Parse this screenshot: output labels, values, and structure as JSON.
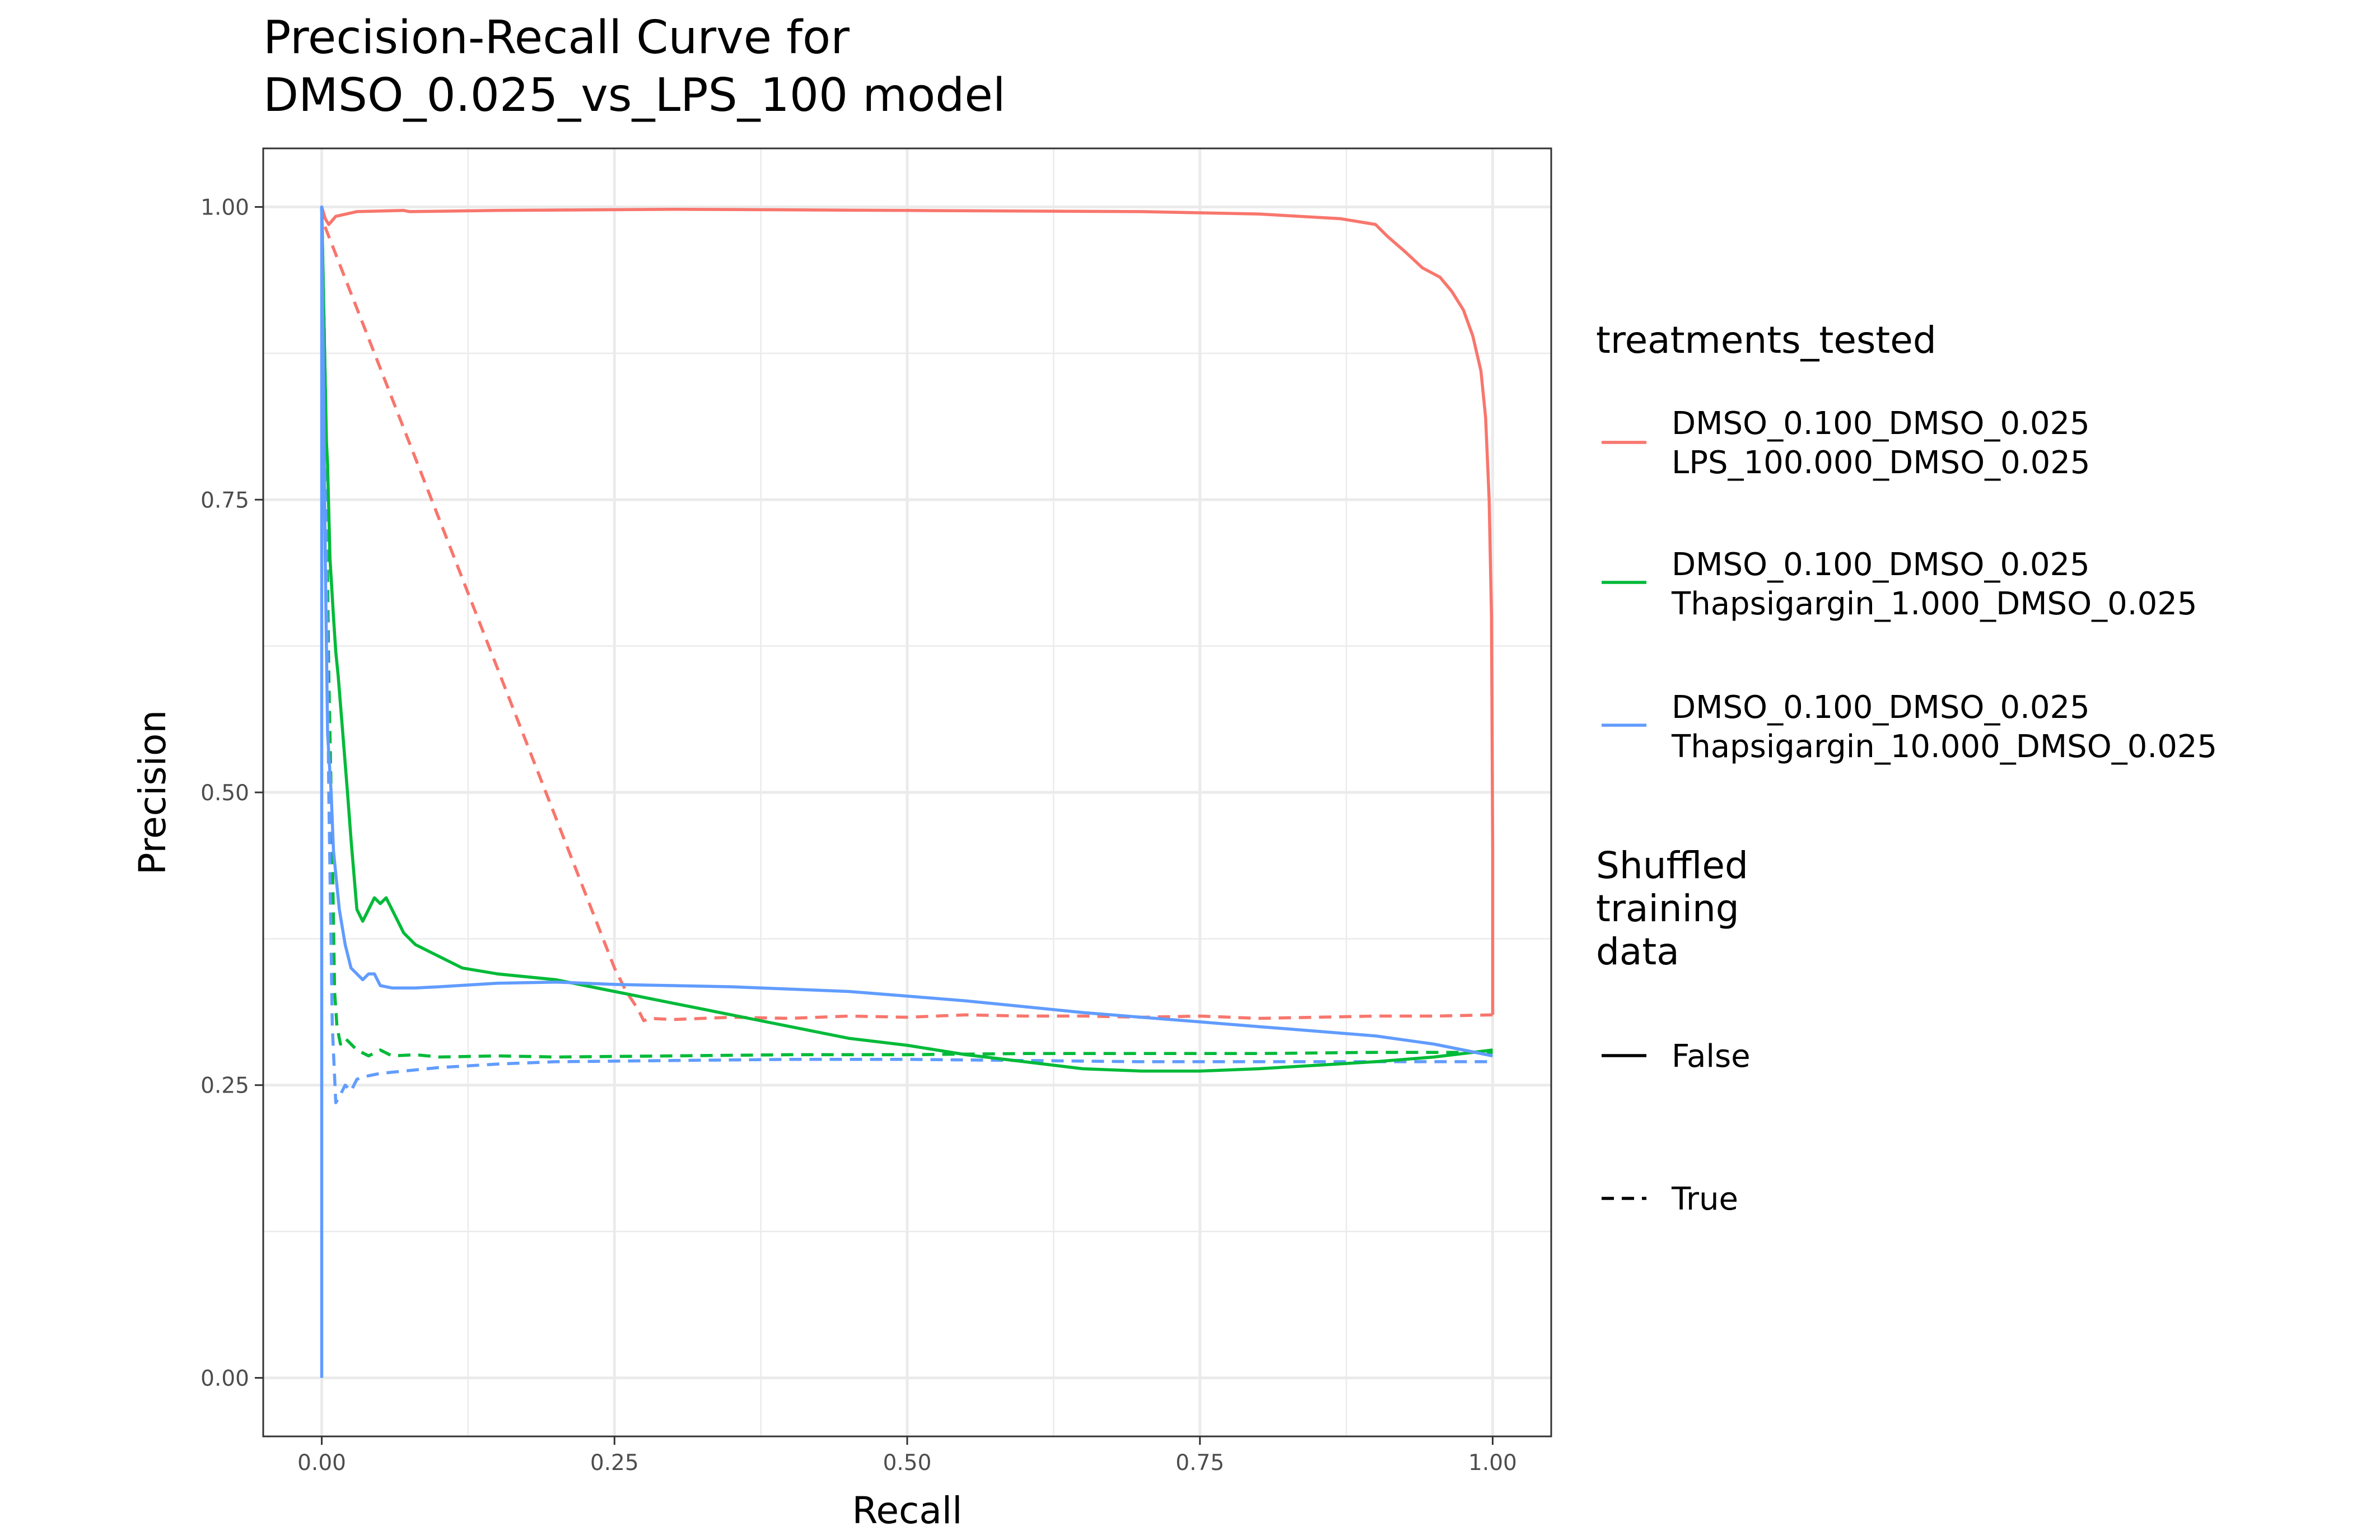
{
  "chart_data": {
    "type": "line",
    "title_lines": [
      "Precision-Recall Curve for",
      "DMSO_0.025_vs_LPS_100 model"
    ],
    "xlabel": "Recall",
    "ylabel": "Precision",
    "xlim": [
      -0.05,
      1.05
    ],
    "ylim": [
      -0.05,
      1.05
    ],
    "x_ticks": [
      0.0,
      0.25,
      0.5,
      0.75,
      1.0
    ],
    "x_tick_labels": [
      "0.00",
      "0.25",
      "0.50",
      "0.75",
      "1.00"
    ],
    "y_ticks": [
      0.0,
      0.25,
      0.5,
      0.75,
      1.0
    ],
    "y_tick_labels": [
      "0.00",
      "0.25",
      "0.50",
      "0.75",
      "1.00"
    ],
    "minor_grid": [
      0.125,
      0.375,
      0.625,
      0.875
    ],
    "grid": true,
    "legend_position": "right",
    "legend": {
      "color_title": "treatments_tested",
      "color_entries": [
        {
          "lines": [
            "DMSO_0.100_DMSO_0.025",
            "LPS_100.000_DMSO_0.025"
          ],
          "color": "#F8766D"
        },
        {
          "lines": [
            "DMSO_0.100_DMSO_0.025",
            "Thapsigargin_1.000_DMSO_0.025"
          ],
          "color": "#00BA38"
        },
        {
          "lines": [
            "DMSO_0.100_DMSO_0.025",
            "Thapsigargin_10.000_DMSO_0.025"
          ],
          "color": "#619CFF"
        }
      ],
      "linetype_title_lines": [
        "Shuffled",
        "training",
        "data"
      ],
      "linetype_entries": [
        {
          "label": "False",
          "dash": "solid"
        },
        {
          "label": "True",
          "dash": "dashed"
        }
      ]
    },
    "series": [
      {
        "treatment": "DMSO_0.100_DMSO_0.025 / LPS_100.000_DMSO_0.025",
        "shuffled": "False",
        "color": "#F8766D",
        "dash": "solid",
        "x": [
          0.0,
          0.003,
          0.006,
          0.012,
          0.03,
          0.07,
          0.075,
          0.15,
          0.3,
          0.5,
          0.7,
          0.8,
          0.87,
          0.9,
          0.91,
          0.925,
          0.94,
          0.955,
          0.965,
          0.975,
          0.983,
          0.99,
          0.994,
          0.997,
          0.998,
          0.999,
          1.0,
          1.0
        ],
        "y": [
          1.0,
          0.99,
          0.985,
          0.992,
          0.996,
          0.997,
          0.996,
          0.997,
          0.998,
          0.997,
          0.996,
          0.994,
          0.99,
          0.985,
          0.975,
          0.962,
          0.948,
          0.94,
          0.928,
          0.912,
          0.89,
          0.86,
          0.82,
          0.75,
          0.7,
          0.65,
          0.45,
          0.31
        ]
      },
      {
        "treatment": "DMSO_0.100_DMSO_0.025 / LPS_100.000_DMSO_0.025",
        "shuffled": "True",
        "color": "#F8766D",
        "dash": "dashed",
        "x": [
          0.0,
          0.002,
          0.004,
          0.25,
          0.26,
          0.27,
          0.275,
          0.28,
          0.3,
          0.35,
          0.4,
          0.45,
          0.5,
          0.55,
          0.6,
          0.65,
          0.7,
          0.75,
          0.8,
          0.85,
          0.9,
          0.95,
          1.0
        ],
        "y": [
          1.0,
          0.985,
          0.98,
          0.35,
          0.33,
          0.315,
          0.305,
          0.307,
          0.306,
          0.308,
          0.307,
          0.309,
          0.308,
          0.31,
          0.309,
          0.309,
          0.308,
          0.309,
          0.307,
          0.308,
          0.309,
          0.309,
          0.31
        ]
      },
      {
        "treatment": "DMSO_0.100_DMSO_0.025 / Thapsigargin_1.000_DMSO_0.025",
        "shuffled": "False",
        "color": "#00BA38",
        "dash": "solid",
        "x": [
          0.0,
          0.002,
          0.004,
          0.005,
          0.007,
          0.01,
          0.012,
          0.014,
          0.018,
          0.022,
          0.025,
          0.03,
          0.035,
          0.04,
          0.045,
          0.05,
          0.055,
          0.06,
          0.07,
          0.08,
          0.1,
          0.12,
          0.15,
          0.2,
          0.25,
          0.3,
          0.35,
          0.4,
          0.45,
          0.5,
          0.55,
          0.6,
          0.65,
          0.7,
          0.75,
          0.8,
          0.85,
          0.9,
          0.95,
          1.0
        ],
        "y": [
          1.0,
          0.9,
          0.8,
          0.78,
          0.7,
          0.65,
          0.62,
          0.6,
          0.55,
          0.5,
          0.46,
          0.4,
          0.39,
          0.4,
          0.41,
          0.405,
          0.41,
          0.4,
          0.38,
          0.37,
          0.36,
          0.35,
          0.345,
          0.34,
          0.33,
          0.32,
          0.31,
          0.3,
          0.29,
          0.284,
          0.276,
          0.27,
          0.264,
          0.262,
          0.262,
          0.264,
          0.267,
          0.27,
          0.274,
          0.28
        ]
      },
      {
        "treatment": "DMSO_0.100_DMSO_0.025 / Thapsigargin_1.000_DMSO_0.025",
        "shuffled": "True",
        "color": "#00BA38",
        "dash": "dashed",
        "x": [
          0.0,
          0.003,
          0.006,
          0.009,
          0.011,
          0.013,
          0.016,
          0.02,
          0.025,
          0.03,
          0.04,
          0.05,
          0.06,
          0.08,
          0.1,
          0.15,
          0.2,
          0.3,
          0.4,
          0.5,
          0.6,
          0.7,
          0.8,
          0.9,
          1.0
        ],
        "y": [
          1.0,
          0.85,
          0.6,
          0.45,
          0.33,
          0.3,
          0.285,
          0.29,
          0.285,
          0.28,
          0.275,
          0.28,
          0.275,
          0.276,
          0.274,
          0.275,
          0.274,
          0.275,
          0.276,
          0.276,
          0.277,
          0.277,
          0.277,
          0.278,
          0.278
        ]
      },
      {
        "treatment": "DMSO_0.100_DMSO_0.025 / Thapsigargin_10.000_DMSO_0.025",
        "shuffled": "False",
        "color": "#619CFF",
        "dash": "solid",
        "x": [
          0.0,
          0.0,
          0.003,
          0.005,
          0.008,
          0.01,
          0.015,
          0.02,
          0.025,
          0.03,
          0.035,
          0.04,
          0.045,
          0.05,
          0.06,
          0.08,
          0.1,
          0.15,
          0.2,
          0.25,
          0.3,
          0.35,
          0.4,
          0.45,
          0.5,
          0.55,
          0.6,
          0.65,
          0.7,
          0.75,
          0.8,
          0.85,
          0.9,
          0.95,
          1.0
        ],
        "y": [
          0.0,
          1.0,
          0.7,
          0.55,
          0.5,
          0.45,
          0.4,
          0.37,
          0.35,
          0.345,
          0.34,
          0.345,
          0.345,
          0.335,
          0.333,
          0.333,
          0.334,
          0.337,
          0.338,
          0.336,
          0.335,
          0.334,
          0.332,
          0.33,
          0.326,
          0.322,
          0.317,
          0.312,
          0.308,
          0.304,
          0.3,
          0.296,
          0.292,
          0.285,
          0.275
        ]
      },
      {
        "treatment": "DMSO_0.100_DMSO_0.025 / Thapsigargin_10.000_DMSO_0.025",
        "shuffled": "True",
        "color": "#619CFF",
        "dash": "dashed",
        "x": [
          0.0,
          0.003,
          0.006,
          0.009,
          0.012,
          0.015,
          0.02,
          0.025,
          0.03,
          0.04,
          0.05,
          0.07,
          0.1,
          0.15,
          0.2,
          0.3,
          0.4,
          0.5,
          0.6,
          0.7,
          0.8,
          0.9,
          1.0
        ],
        "y": [
          1.0,
          0.8,
          0.5,
          0.3,
          0.235,
          0.24,
          0.25,
          0.245,
          0.255,
          0.258,
          0.26,
          0.262,
          0.265,
          0.268,
          0.27,
          0.271,
          0.272,
          0.272,
          0.271,
          0.27,
          0.27,
          0.27,
          0.27
        ]
      }
    ]
  }
}
